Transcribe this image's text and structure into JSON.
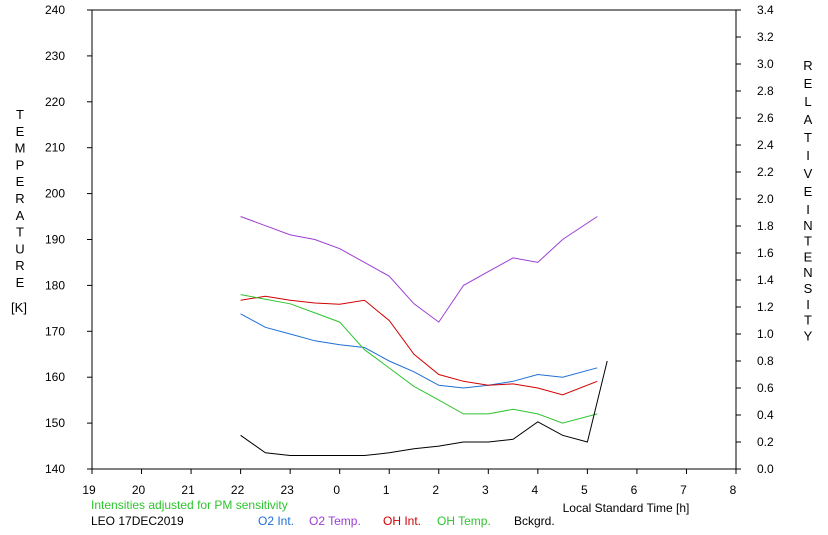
{
  "chart_data": {
    "type": "line",
    "left_axis": {
      "label": "TEMPERATURE",
      "unit": "[K]",
      "range": [
        140,
        240
      ],
      "ticks": [
        "240",
        "230",
        "220",
        "210",
        "200",
        "190",
        "180",
        "170",
        "160",
        "150",
        "140"
      ]
    },
    "right_axis": {
      "label_word1": "RELATIVE",
      "label_word2": "INTENSITY",
      "range": [
        0.0,
        3.4
      ],
      "ticks": [
        "3.4",
        "3.2",
        "3.0",
        "2.8",
        "2.6",
        "2.4",
        "2.2",
        "2.0",
        "1.8",
        "1.6",
        "1.4",
        "1.2",
        "1.0",
        "0.8",
        "0.6",
        "0.4",
        "0.2",
        "0.0"
      ]
    },
    "x_axis": {
      "label": "Local Standard Time [h]",
      "ticks": [
        "19",
        "20",
        "21",
        "22",
        "23",
        "0",
        "1",
        "2",
        "3",
        "4",
        "5",
        "6",
        "7",
        "8"
      ]
    },
    "note": "Intensities adjusted for PM sensitivity",
    "station": "LEO 17DEC2019",
    "series": [
      {
        "name": "O2 Int.",
        "color": "#1f6fd6",
        "axis": "right",
        "x": [
          22.0,
          22.5,
          23.0,
          23.5,
          24.0,
          24.5,
          25.0,
          25.5,
          26.0,
          26.5,
          27.0,
          27.5,
          28.0,
          28.5,
          29.2
        ],
        "y": [
          1.15,
          1.05,
          1.0,
          0.95,
          0.92,
          0.9,
          0.8,
          0.72,
          0.62,
          0.6,
          0.62,
          0.65,
          0.7,
          0.68,
          0.75
        ]
      },
      {
        "name": "O2 Temp.",
        "color": "#9b3fd1",
        "axis": "left",
        "x": [
          22.0,
          22.5,
          23.0,
          23.5,
          24.0,
          24.5,
          25.0,
          25.5,
          26.0,
          26.5,
          27.0,
          27.5,
          28.0,
          28.5,
          29.2
        ],
        "y": [
          195,
          193,
          191,
          190,
          188,
          185,
          182,
          176,
          172,
          180,
          183,
          186,
          185,
          190,
          195
        ]
      },
      {
        "name": "OH Int.",
        "color": "#d10000",
        "axis": "right",
        "x": [
          22.0,
          22.5,
          23.0,
          23.5,
          24.0,
          24.5,
          25.0,
          25.5,
          26.0,
          26.5,
          27.0,
          27.5,
          28.0,
          28.5,
          29.2
        ],
        "y": [
          1.25,
          1.28,
          1.25,
          1.23,
          1.22,
          1.25,
          1.1,
          0.85,
          0.7,
          0.65,
          0.62,
          0.63,
          0.6,
          0.55,
          0.65
        ]
      },
      {
        "name": "OH Temp.",
        "color": "#2fc42f",
        "axis": "left",
        "x": [
          22.0,
          22.5,
          23.0,
          23.5,
          24.0,
          24.5,
          25.0,
          25.5,
          26.0,
          26.5,
          27.0,
          27.5,
          28.0,
          28.5,
          29.2
        ],
        "y": [
          178,
          177,
          176,
          174,
          172,
          166,
          162,
          158,
          155,
          152,
          152,
          153,
          152,
          150,
          152
        ]
      },
      {
        "name": "Bckgrd.",
        "color": "#000000",
        "axis": "right",
        "x": [
          22.0,
          22.5,
          23.0,
          23.5,
          24.0,
          24.5,
          25.0,
          25.5,
          26.0,
          26.5,
          27.0,
          27.5,
          28.0,
          28.5,
          29.0,
          29.4
        ],
        "y": [
          0.25,
          0.12,
          0.1,
          0.1,
          0.1,
          0.1,
          0.12,
          0.15,
          0.17,
          0.2,
          0.2,
          0.22,
          0.35,
          0.25,
          0.2,
          0.8
        ]
      }
    ]
  }
}
